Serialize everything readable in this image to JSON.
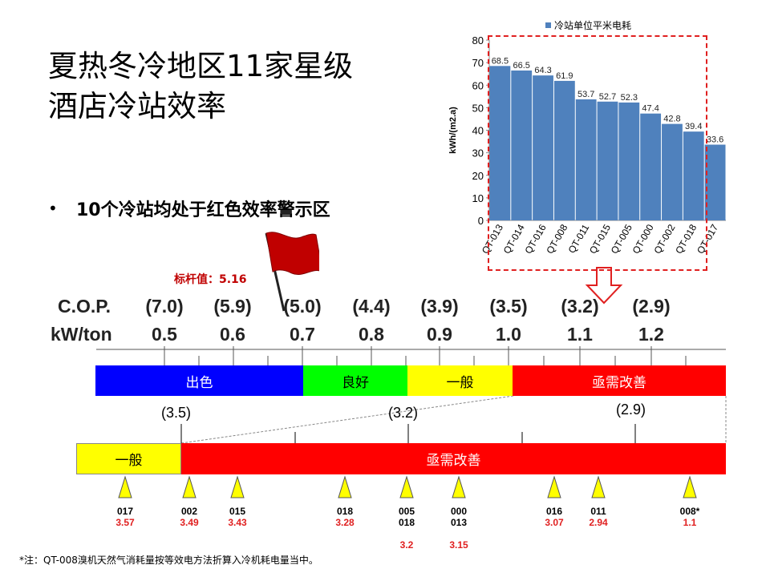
{
  "title": "夏热冬冷地区11家星级\n酒店冷站效率",
  "bullet": "10个冷站均处于红色效率警示区",
  "benchmark_label": "标杆值：5.16",
  "scale": {
    "cop_label": "C.O.P.",
    "kwton_label": "kW/ton",
    "cop_ticks": [
      "(7.0)",
      "(5.9)",
      "(5.0)",
      "(4.4)",
      "(3.9)",
      "(3.5)",
      "(3.2)",
      "(2.9)"
    ],
    "kwton_ticks": [
      "0.5",
      "0.6",
      "0.7",
      "0.8",
      "0.9",
      "1.0",
      "1.1",
      "1.2"
    ]
  },
  "bands": {
    "excellent": "出色",
    "good": "良好",
    "average": "一般",
    "improve": "亟需改善"
  },
  "zoom": {
    "labels": [
      "(3.5)",
      "(3.2)",
      "(2.9)"
    ],
    "average": "一般",
    "improve": "亟需改善"
  },
  "plants": [
    {
      "ids": "017",
      "vals": "3.57"
    },
    {
      "ids": "002",
      "vals": "3.49"
    },
    {
      "ids": "015",
      "vals": "3.43"
    },
    {
      "ids": "018",
      "vals": "3.28"
    },
    {
      "ids": "005\n018",
      "vals": "\n3.2"
    },
    {
      "ids": "000\n013",
      "vals": "\n3.15"
    },
    {
      "ids": "016",
      "vals": "3.07"
    },
    {
      "ids": "011",
      "vals": "2.94"
    },
    {
      "ids": "008*",
      "vals": "1.1"
    }
  ],
  "footnote": "*注：QT-008溴机天然气消耗量按等效电方法折算入冷机耗电量当中。",
  "colors": {
    "bar": "#4f81bd",
    "excellent": "#0000ff",
    "good": "#00ff00",
    "average": "#ffff00",
    "improve": "#ff0000",
    "alert": "#e02020",
    "marker": "#ffff00"
  },
  "chart_data": {
    "type": "bar",
    "categories": [
      "QT-013",
      "QT-014",
      "QT-016",
      "QT-008",
      "QT-011",
      "QT-015",
      "QT-005",
      "QT-000",
      "QT-002",
      "QT-018",
      "QT-017"
    ],
    "series": [
      {
        "name": "冷站单位平米电耗",
        "values": [
          68.5,
          66.5,
          64.3,
          61.9,
          53.7,
          52.7,
          52.3,
          47.4,
          42.8,
          39.4,
          33.6
        ]
      }
    ],
    "ylabel": "kWh/(m2.a)",
    "ylim": [
      0,
      80
    ],
    "yticks": [
      0,
      10,
      20,
      30,
      40,
      50,
      60,
      70,
      80
    ],
    "legend": "top",
    "grid": false
  }
}
